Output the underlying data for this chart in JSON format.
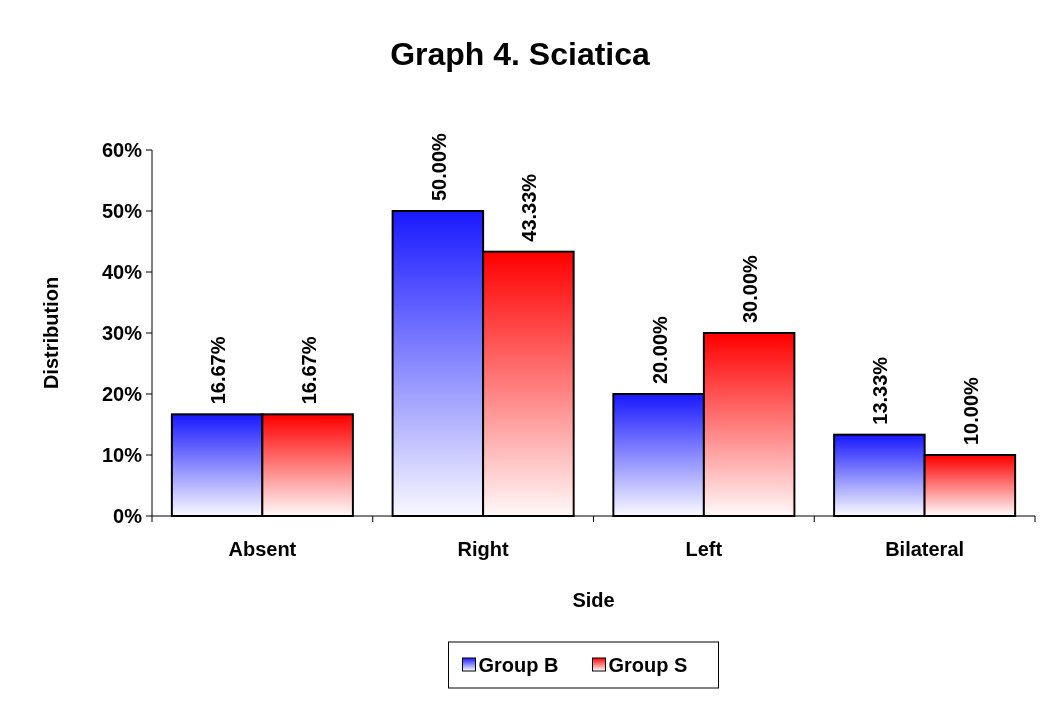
{
  "chart_data": {
    "type": "bar",
    "title": "Graph 4. Sciatica",
    "xlabel": "Side",
    "ylabel": "Distribution",
    "categories": [
      "Absent",
      "Right",
      "Left",
      "Bilateral"
    ],
    "series": [
      {
        "name": "Group B",
        "color": "#1a1aff",
        "values": [
          16.67,
          50,
          20,
          13.33
        ],
        "value_labels": [
          "16.67%",
          "50.00%",
          "20.00%",
          "13.33%"
        ]
      },
      {
        "name": "Group S",
        "color": "#ff0000",
        "values": [
          16.67,
          43.33,
          30,
          10
        ],
        "value_labels": [
          "16.67%",
          "43.33%",
          "30.00%",
          "10.00%"
        ]
      }
    ],
    "ylim": [
      0,
      60
    ],
    "yticks": [
      {
        "value": 0,
        "label": "0%"
      },
      {
        "value": 10,
        "label": "10%"
      },
      {
        "value": 20,
        "label": "20%"
      },
      {
        "value": 30,
        "label": "30%"
      },
      {
        "value": 40,
        "label": "40%"
      },
      {
        "value": 50,
        "label": "50%"
      },
      {
        "value": 60,
        "label": "60%"
      }
    ],
    "grid": false,
    "legend": "bottom"
  }
}
